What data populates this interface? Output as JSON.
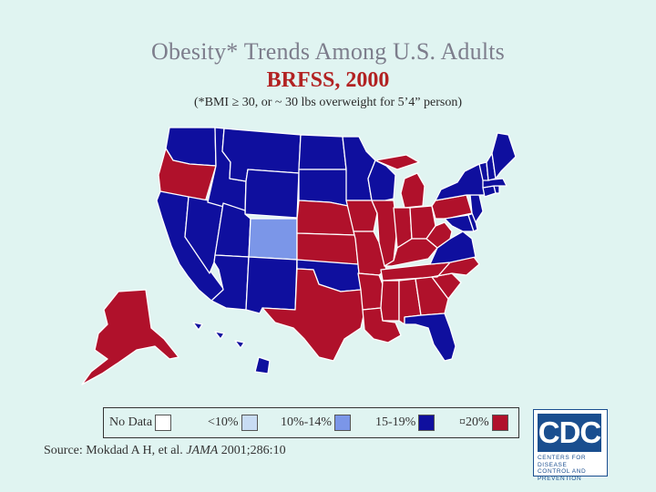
{
  "title": "Obesity* Trends Among U.S. Adults",
  "subtitle": "BRFSS, 2000",
  "note": "(*BMI ≥ 30, or ~ 30 lbs overweight for 5’4” person)",
  "colors": {
    "background": "#e0f4f1",
    "no_data": "#ffffff",
    "lt10": "#c8dcf4",
    "10_14": "#7b96e8",
    "15_19": "#0f0f9e",
    "ge20": "#b0112b",
    "border": "#ffffff"
  },
  "legend": {
    "items": [
      {
        "label": "No Data",
        "color_key": "no_data"
      },
      {
        "label": "<10%",
        "color_key": "lt10"
      },
      {
        "label": "10%-14%",
        "color_key": "10_14"
      },
      {
        "label": "15-19%",
        "color_key": "15_19"
      },
      {
        "label": "¤20%",
        "color_key": "ge20"
      }
    ]
  },
  "source": {
    "prefix": "Source: Mokdad A H, et al. ",
    "journal": "JAMA",
    "suffix": " 2001;286:10"
  },
  "logo": {
    "text": "CDC",
    "line1": "CENTERS FOR DISEASE",
    "line2": "CONTROL AND PREVENTION"
  },
  "map_data": {
    "categories": {
      "15_19": [
        "WA",
        "ID",
        "MT",
        "ND",
        "SD",
        "MN",
        "WI",
        "WY",
        "NV",
        "UT",
        "CA",
        "AZ",
        "NM",
        "OK",
        "FL",
        "VA",
        "NY",
        "VT",
        "NH",
        "ME",
        "MA",
        "CT",
        "RI",
        "NJ",
        "DE",
        "MD",
        "HI"
      ],
      "10_14": [
        "CO"
      ],
      "ge20": [
        "OR",
        "AK",
        "TX",
        "KS",
        "NE",
        "IA",
        "MO",
        "AR",
        "LA",
        "MS",
        "AL",
        "GA",
        "SC",
        "NC",
        "TN",
        "KY",
        "IL",
        "IN",
        "OH",
        "MI",
        "WV",
        "PA"
      ]
    }
  }
}
